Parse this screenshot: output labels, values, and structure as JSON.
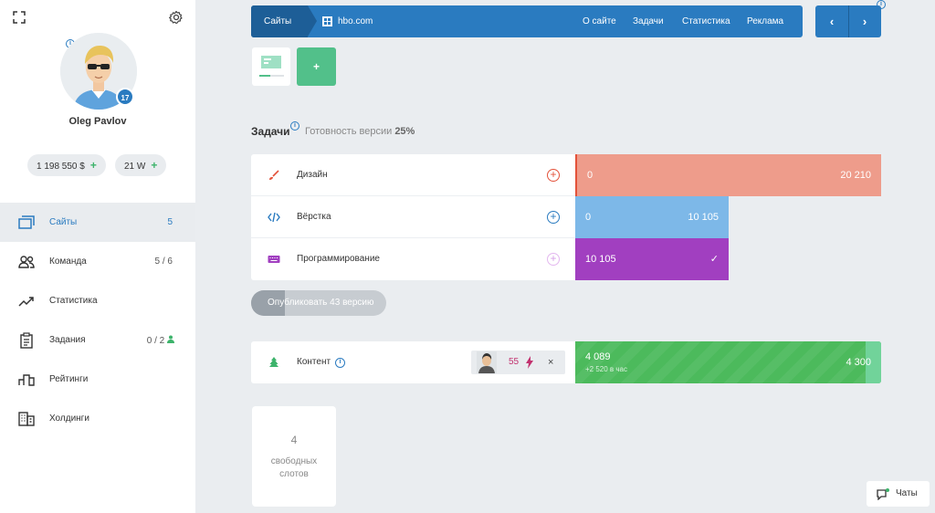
{
  "sidebar": {
    "user_name": "Oleg Pavlov",
    "level": "17",
    "money": "1 198 550 $",
    "power": "21 W",
    "plus": "+",
    "items": [
      {
        "label": "Сайты",
        "count": "5",
        "icon": "sites-icon",
        "active": true
      },
      {
        "label": "Команда",
        "count": "5 / 6",
        "icon": "team-icon"
      },
      {
        "label": "Статистика",
        "count": "",
        "icon": "stats-icon"
      },
      {
        "label": "Задания",
        "count": "0 / 2",
        "icon": "tasks-icon"
      },
      {
        "label": "Рейтинги",
        "count": "",
        "icon": "ratings-icon"
      },
      {
        "label": "Холдинги",
        "count": "",
        "icon": "holdings-icon"
      }
    ]
  },
  "topbar": {
    "sites": "Сайты",
    "domain": "hbo.com",
    "links": [
      "О сайте",
      "Задачи",
      "Статистика",
      "Реклама"
    ],
    "prev": "‹",
    "next": "›"
  },
  "add_site": "+",
  "tasks": {
    "title": "Задачи",
    "ready_label": "Готовность версии",
    "ready_value": "25%",
    "rows": [
      {
        "label": "Дизайн",
        "start": "0",
        "end": "20 210",
        "color": "#ee9c8b"
      },
      {
        "label": "Вёрстка",
        "start": "0",
        "end": "10 105",
        "color": "#7db8e8"
      },
      {
        "label": "Программирование",
        "start": "10 105",
        "end": "✓",
        "color": "#a13fc0"
      }
    ],
    "add": "+"
  },
  "publish": {
    "label": "Опубликовать 43 версию",
    "progress": 0.25
  },
  "content": {
    "label": "Контент",
    "energy": "55",
    "close": "×",
    "value": "4 089",
    "rate": "+2 520 в час",
    "target": "4 300",
    "progress": 0.95
  },
  "slots": {
    "count": "4",
    "text_line1": "свободных",
    "text_line2": "слотов"
  },
  "chats": {
    "label": "Чаты"
  },
  "colors": {
    "primary": "#2a7bc0",
    "green": "#4cba5c",
    "design": "#e3523a",
    "prog": "#a13fc0"
  }
}
